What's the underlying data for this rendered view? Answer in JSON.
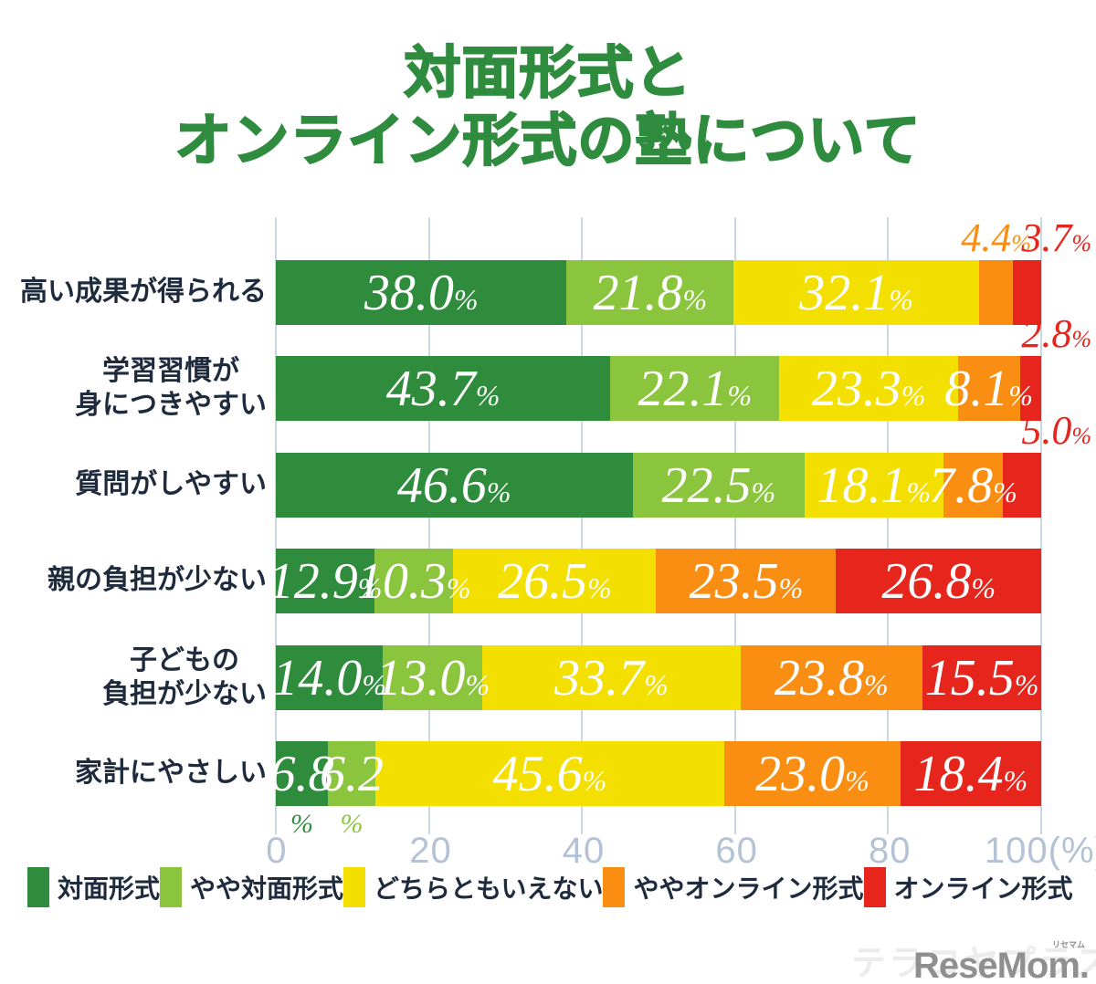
{
  "title": {
    "line1": "対面形式と",
    "line2": "オンライン形式の塾について"
  },
  "chart_data": {
    "type": "bar",
    "subtype": "horizontal-stacked",
    "unit": "%",
    "xlim": [
      0,
      100
    ],
    "grid": true,
    "legend_position": "bottom",
    "colors": [
      "#2f8c3c",
      "#8bc53e",
      "#f4e000",
      "#f98e12",
      "#e6251c"
    ],
    "series": [
      "対面形式",
      "やや対面形式",
      "どちらともいえない",
      "ややオンライン形式",
      "オンライン形式"
    ],
    "axis": {
      "ticks": [
        {
          "label": "0",
          "value": 0
        },
        {
          "label": "20",
          "value": 20
        },
        {
          "label": "40",
          "value": 40
        },
        {
          "label": "60",
          "value": 60
        },
        {
          "label": "80",
          "value": 80
        },
        {
          "label": "100(%)",
          "value": 100
        }
      ]
    },
    "rows": [
      {
        "category": "高い成果が得られる",
        "lines": [
          "高い成果が得られる"
        ],
        "segments": [
          {
            "v": 38.0,
            "t": "38.0",
            "mode": "inside"
          },
          {
            "v": 21.8,
            "t": "21.8",
            "mode": "inside"
          },
          {
            "v": 32.1,
            "t": "32.1",
            "mode": "inside"
          },
          {
            "v": 4.4,
            "t": "4.4",
            "mode": "above"
          },
          {
            "v": 3.7,
            "t": "3.7",
            "mode": "above"
          }
        ]
      },
      {
        "category": "学習習慣が身につきやすい",
        "lines": [
          "学習習慣が",
          "身につきやすい"
        ],
        "segments": [
          {
            "v": 43.7,
            "t": "43.7",
            "mode": "inside"
          },
          {
            "v": 22.1,
            "t": "22.1",
            "mode": "inside"
          },
          {
            "v": 23.3,
            "t": "23.3",
            "mode": "inside"
          },
          {
            "v": 8.1,
            "t": "8.1",
            "mode": "inside"
          },
          {
            "v": 2.8,
            "t": "2.8",
            "mode": "above"
          }
        ]
      },
      {
        "category": "質問がしやすい",
        "lines": [
          "質問がしやすい"
        ],
        "segments": [
          {
            "v": 46.6,
            "t": "46.6",
            "mode": "inside"
          },
          {
            "v": 22.5,
            "t": "22.5",
            "mode": "inside"
          },
          {
            "v": 18.1,
            "t": "18.1",
            "mode": "inside"
          },
          {
            "v": 7.8,
            "t": "7.8",
            "mode": "inside"
          },
          {
            "v": 5.0,
            "t": "5.0",
            "mode": "above"
          }
        ]
      },
      {
        "category": "親の負担が少ない",
        "lines": [
          "親の負担が少ない"
        ],
        "segments": [
          {
            "v": 12.9,
            "t": "12.9",
            "mode": "inside"
          },
          {
            "v": 10.3,
            "t": "10.3",
            "mode": "inside"
          },
          {
            "v": 26.5,
            "t": "26.5",
            "mode": "inside"
          },
          {
            "v": 23.5,
            "t": "23.5",
            "mode": "inside"
          },
          {
            "v": 26.8,
            "t": "26.8",
            "mode": "inside"
          }
        ]
      },
      {
        "category": "子どもの負担が少ない",
        "lines": [
          "子どもの",
          "負担が少ない"
        ],
        "segments": [
          {
            "v": 14.0,
            "t": "14.0",
            "mode": "inside"
          },
          {
            "v": 13.0,
            "t": "13.0",
            "mode": "inside"
          },
          {
            "v": 33.7,
            "t": "33.7",
            "mode": "inside"
          },
          {
            "v": 23.8,
            "t": "23.8",
            "mode": "inside"
          },
          {
            "v": 15.5,
            "t": "15.5",
            "mode": "inside"
          }
        ]
      },
      {
        "category": "家計にやさしい",
        "lines": [
          "家計にやさしい"
        ],
        "segments": [
          {
            "v": 6.8,
            "t": "6.8",
            "mode": "split"
          },
          {
            "v": 6.2,
            "t": "6.2",
            "mode": "split"
          },
          {
            "v": 45.6,
            "t": "45.6",
            "mode": "inside"
          },
          {
            "v": 23.0,
            "t": "23.0",
            "mode": "inside"
          },
          {
            "v": 18.4,
            "t": "18.4",
            "mode": "inside"
          }
        ]
      }
    ]
  },
  "watermarks": {
    "brand": "テラコヤプラス",
    "logo": "ReseMom.",
    "logo_ruby": "リセマム"
  }
}
